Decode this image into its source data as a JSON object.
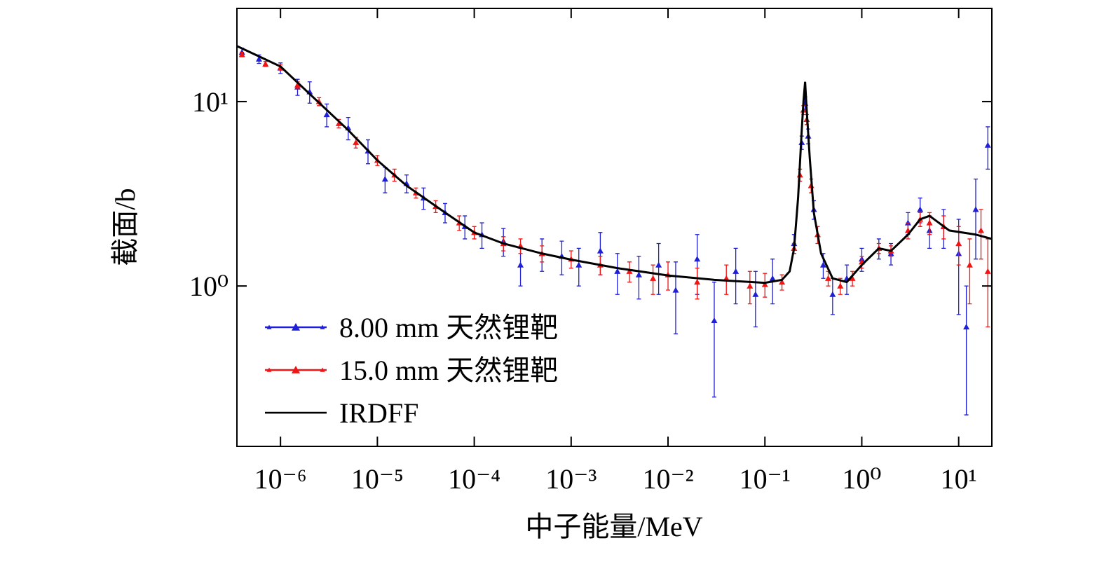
{
  "chart_data": {
    "type": "scatter",
    "x_label": "中子能量/MeV",
    "y_label": "截面/b",
    "xlog": true,
    "ylog": true,
    "xlim": [
      3.55e-07,
      22
    ],
    "ylim": [
      0.135,
      32
    ],
    "xticks": [
      {
        "value": 1e-06,
        "label": "10⁻⁶"
      },
      {
        "value": 1e-05,
        "label": "10⁻⁵"
      },
      {
        "value": 0.0001,
        "label": "10⁻⁴"
      },
      {
        "value": 0.001,
        "label": "10⁻³"
      },
      {
        "value": 0.01,
        "label": "10⁻²"
      },
      {
        "value": 0.1,
        "label": "10⁻¹"
      },
      {
        "value": 1,
        "label": "10⁰"
      },
      {
        "value": 10,
        "label": "10¹"
      }
    ],
    "yticks": [
      {
        "value": 1,
        "label": "10⁰"
      },
      {
        "value": 10,
        "label": "10¹"
      }
    ],
    "legend": "lower left",
    "series": [
      {
        "name": "8.00 mm 天然锂靶",
        "color": "#1f1fd6",
        "marker": "triangle",
        "x": [
          4e-07,
          6e-07,
          1e-06,
          1.5e-06,
          2e-06,
          3e-06,
          5e-06,
          8e-06,
          1.2e-05,
          2e-05,
          3e-05,
          5e-05,
          8e-05,
          0.00012,
          0.0002,
          0.0003,
          0.0005,
          0.0008,
          0.0012,
          0.002,
          0.003,
          0.005,
          0.008,
          0.012,
          0.02,
          0.03,
          0.05,
          0.08,
          0.12,
          0.2,
          0.24,
          0.26,
          0.28,
          0.32,
          0.4,
          0.5,
          0.7,
          1,
          1.5,
          2,
          3,
          4,
          5,
          7,
          10,
          12,
          15,
          20
        ],
        "values": [
          18.5,
          17,
          15.2,
          12,
          11.3,
          8.5,
          7.2,
          5.4,
          3.8,
          3.6,
          3.0,
          2.5,
          2.1,
          1.9,
          1.75,
          1.3,
          1.5,
          1.45,
          1.3,
          1.55,
          1.2,
          1.15,
          1.3,
          0.95,
          1.4,
          0.65,
          1.2,
          0.9,
          1.1,
          1.7,
          6,
          9.8,
          6.5,
          2.6,
          1.3,
          0.9,
          1.1,
          1.4,
          1.6,
          1.5,
          2.2,
          2.6,
          2.0,
          2.1,
          1.5,
          0.6,
          2.6,
          5.8
        ],
        "errors": [
          1.0,
          0.9,
          1,
          1.2,
          1.5,
          1.2,
          1,
          0.8,
          0.6,
          0.4,
          0.4,
          0.3,
          0.3,
          0.3,
          0.3,
          0.3,
          0.3,
          0.3,
          0.3,
          0.4,
          0.3,
          0.3,
          0.4,
          0.4,
          0.5,
          0.4,
          0.4,
          0.3,
          0.3,
          0.2,
          0.5,
          0.8,
          0.6,
          0.3,
          0.2,
          0.2,
          0.2,
          0.2,
          0.2,
          0.2,
          0.3,
          0.4,
          0.4,
          0.5,
          0.8,
          0.4,
          1.2,
          1.5
        ]
      },
      {
        "name": "15.0 mm 天然锂靶",
        "color": "#f01414",
        "marker": "triangle",
        "x": [
          4e-07,
          7e-07,
          1e-06,
          1.5e-06,
          2.5e-06,
          4e-06,
          6e-06,
          1e-05,
          1.5e-05,
          2.5e-05,
          4e-05,
          7e-05,
          0.0001,
          0.0002,
          0.0003,
          0.0005,
          0.001,
          0.002,
          0.004,
          0.007,
          0.01,
          0.02,
          0.04,
          0.07,
          0.1,
          0.15,
          0.2,
          0.23,
          0.25,
          0.27,
          0.3,
          0.35,
          0.45,
          0.6,
          0.8,
          1,
          1.5,
          2,
          3,
          4,
          5,
          7,
          10,
          13,
          17,
          20
        ],
        "values": [
          18,
          16,
          15.3,
          12.3,
          10,
          7.6,
          6,
          4.8,
          4.0,
          3.2,
          2.7,
          2.2,
          1.95,
          1.7,
          1.65,
          1.5,
          1.4,
          1.3,
          1.2,
          1.1,
          1.15,
          1.05,
          1.1,
          1.0,
          1.02,
          1.05,
          1.6,
          4,
          9,
          8,
          3.5,
          1.9,
          1.1,
          1.0,
          1.1,
          1.35,
          1.6,
          1.55,
          2.0,
          2.3,
          2.2,
          2.1,
          1.7,
          1.3,
          2.0,
          1.2
        ],
        "errors": [
          0.5,
          0.5,
          0.5,
          0.5,
          0.5,
          0.4,
          0.4,
          0.3,
          0.3,
          0.2,
          0.2,
          0.2,
          0.15,
          0.15,
          0.15,
          0.15,
          0.15,
          0.15,
          0.15,
          0.2,
          0.2,
          0.2,
          0.2,
          0.2,
          0.15,
          0.1,
          0.1,
          0.3,
          0.5,
          0.5,
          0.3,
          0.2,
          0.1,
          0.1,
          0.1,
          0.1,
          0.1,
          0.1,
          0.2,
          0.2,
          0.3,
          0.3,
          0.4,
          0.5,
          0.6,
          0.6
        ]
      },
      {
        "name": "IRDFF",
        "color": "#000000",
        "marker": "line",
        "x": [
          3.55e-07,
          1e-06,
          2e-06,
          5e-06,
          1e-05,
          2e-05,
          5e-05,
          0.0001,
          0.0002,
          0.0005,
          0.001,
          0.003,
          0.01,
          0.03,
          0.1,
          0.15,
          0.18,
          0.2,
          0.22,
          0.24,
          0.25,
          0.26,
          0.27,
          0.29,
          0.32,
          0.38,
          0.5,
          0.7,
          1,
          1.5,
          2,
          3,
          4,
          5,
          8,
          15,
          22
        ],
        "values": [
          20,
          15.5,
          11,
          7,
          4.8,
          3.5,
          2.5,
          1.95,
          1.7,
          1.5,
          1.39,
          1.25,
          1.14,
          1.08,
          1.04,
          1.08,
          1.2,
          1.6,
          3,
          7,
          10,
          12.8,
          9,
          5,
          2.5,
          1.5,
          1.1,
          1.05,
          1.3,
          1.6,
          1.55,
          1.9,
          2.3,
          2.4,
          2.0,
          1.9,
          1.8
        ]
      }
    ]
  }
}
